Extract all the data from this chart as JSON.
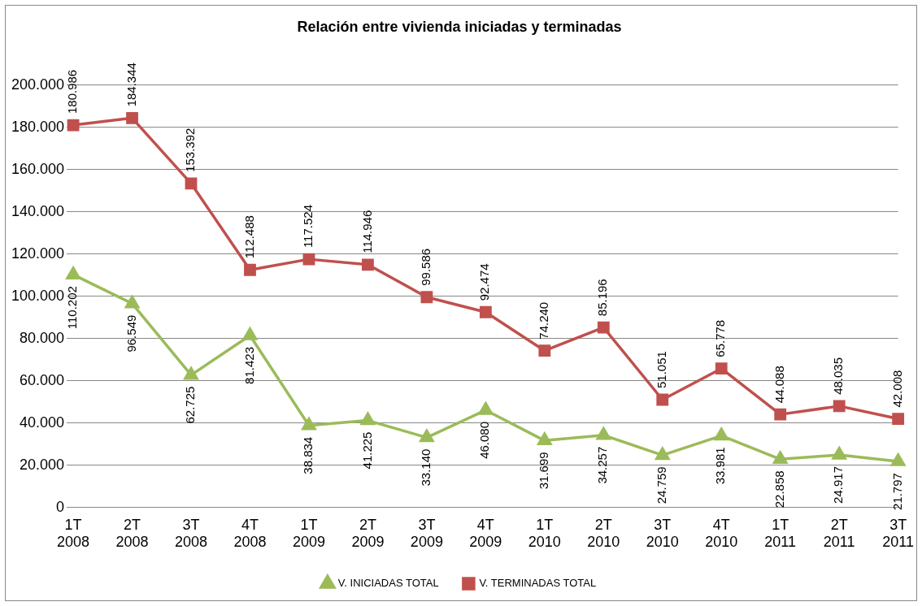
{
  "chart_data": {
    "type": "line",
    "title": "Relación entre vivienda iniciadas y terminadas",
    "categories": [
      "1T 2008",
      "2T 2008",
      "3T 2008",
      "4T 2008",
      "1T 2009",
      "2T 2009",
      "3T 2009",
      "4T 2009",
      "1T 2010",
      "2T 2010",
      "3T 2010",
      "4T 2010",
      "1T 2011",
      "2T 2011",
      "3T 2011"
    ],
    "series": [
      {
        "name": "V. INICIADAS TOTAL",
        "color": "#9bbb59",
        "marker": "triangle",
        "values": [
          110202,
          96549,
          62725,
          81423,
          38834,
          41225,
          33140,
          46080,
          31699,
          34257,
          24759,
          33981,
          22858,
          24917,
          21797
        ],
        "value_labels": [
          "110.202",
          "96.549",
          "62.725",
          "81.423",
          "38.834",
          "41.225",
          "33.140",
          "46.080",
          "31.699",
          "34.257",
          "24.759",
          "33.981",
          "22.858",
          "24.917",
          "21.797"
        ]
      },
      {
        "name": "V. TERMINADAS TOTAL",
        "color": "#c0504d",
        "marker": "square",
        "values": [
          180986,
          184344,
          153392,
          112488,
          117524,
          114946,
          99586,
          92474,
          74240,
          85196,
          51051,
          65778,
          44088,
          48035,
          42008
        ],
        "value_labels": [
          "180.986",
          "184.344",
          "153.392",
          "112.488",
          "117.524",
          "114.946",
          "99.586",
          "92.474",
          "74.240",
          "85.196",
          "51.051",
          "65.778",
          "44.088",
          "48.035",
          "42.008"
        ]
      }
    ],
    "ylim": [
      0,
      200000
    ],
    "yticks": [
      {
        "value": 0,
        "label": "0"
      },
      {
        "value": 20000,
        "label": "20.000"
      },
      {
        "value": 40000,
        "label": "40.000"
      },
      {
        "value": 60000,
        "label": "60.000"
      },
      {
        "value": 80000,
        "label": "80.000"
      },
      {
        "value": 100000,
        "label": "100.000"
      },
      {
        "value": 120000,
        "label": "120.000"
      },
      {
        "value": 140000,
        "label": "140.000"
      },
      {
        "value": 160000,
        "label": "160.000"
      },
      {
        "value": 180000,
        "label": "180.000"
      },
      {
        "value": 200000,
        "label": "200.000"
      }
    ],
    "grid": "y",
    "legend": "bottom",
    "line_style": "solid"
  }
}
